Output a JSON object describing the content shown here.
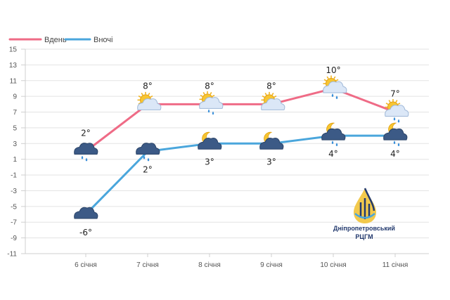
{
  "chart_data": {
    "type": "line",
    "categories": [
      "6 січня",
      "7 січня",
      "8 січня",
      "9 січня",
      "10 січня",
      "11 січня"
    ],
    "series": [
      {
        "name": "Вдень",
        "color": "#ef6b86",
        "values": [
          2,
          8,
          8,
          8,
          10,
          7
        ],
        "labels": [
          "2°",
          "8°",
          "8°",
          "8°",
          "10°",
          "7°"
        ],
        "icons": [
          "cloud-rain-icon",
          "sun-cloud-icon",
          "sun-cloud-rain-icon",
          "sun-cloud-icon",
          "sun-cloud-rain-icon",
          "sun-cloud-rain-icon"
        ]
      },
      {
        "name": "Вночі",
        "color": "#4aa6dc",
        "values": [
          -6,
          2,
          3,
          3,
          4,
          4
        ],
        "labels": [
          "-6°",
          "2°",
          "3°",
          "3°",
          "4°",
          "4°"
        ],
        "icons": [
          "cloud-icon",
          "cloud-rain-icon",
          "moon-cloud-icon",
          "moon-cloud-icon",
          "moon-cloud-rain-icon",
          "moon-cloud-rain-icon"
        ]
      }
    ],
    "yticks": [
      15,
      13,
      11,
      9,
      7,
      5,
      3,
      1,
      -1,
      -3,
      -5,
      -7,
      -9,
      -11
    ],
    "ylim": [
      -11,
      15
    ],
    "grid": true,
    "legend": "top-left"
  },
  "logo": {
    "text_line1": "Дніпропетровський",
    "text_line2": "РЦГМ"
  }
}
